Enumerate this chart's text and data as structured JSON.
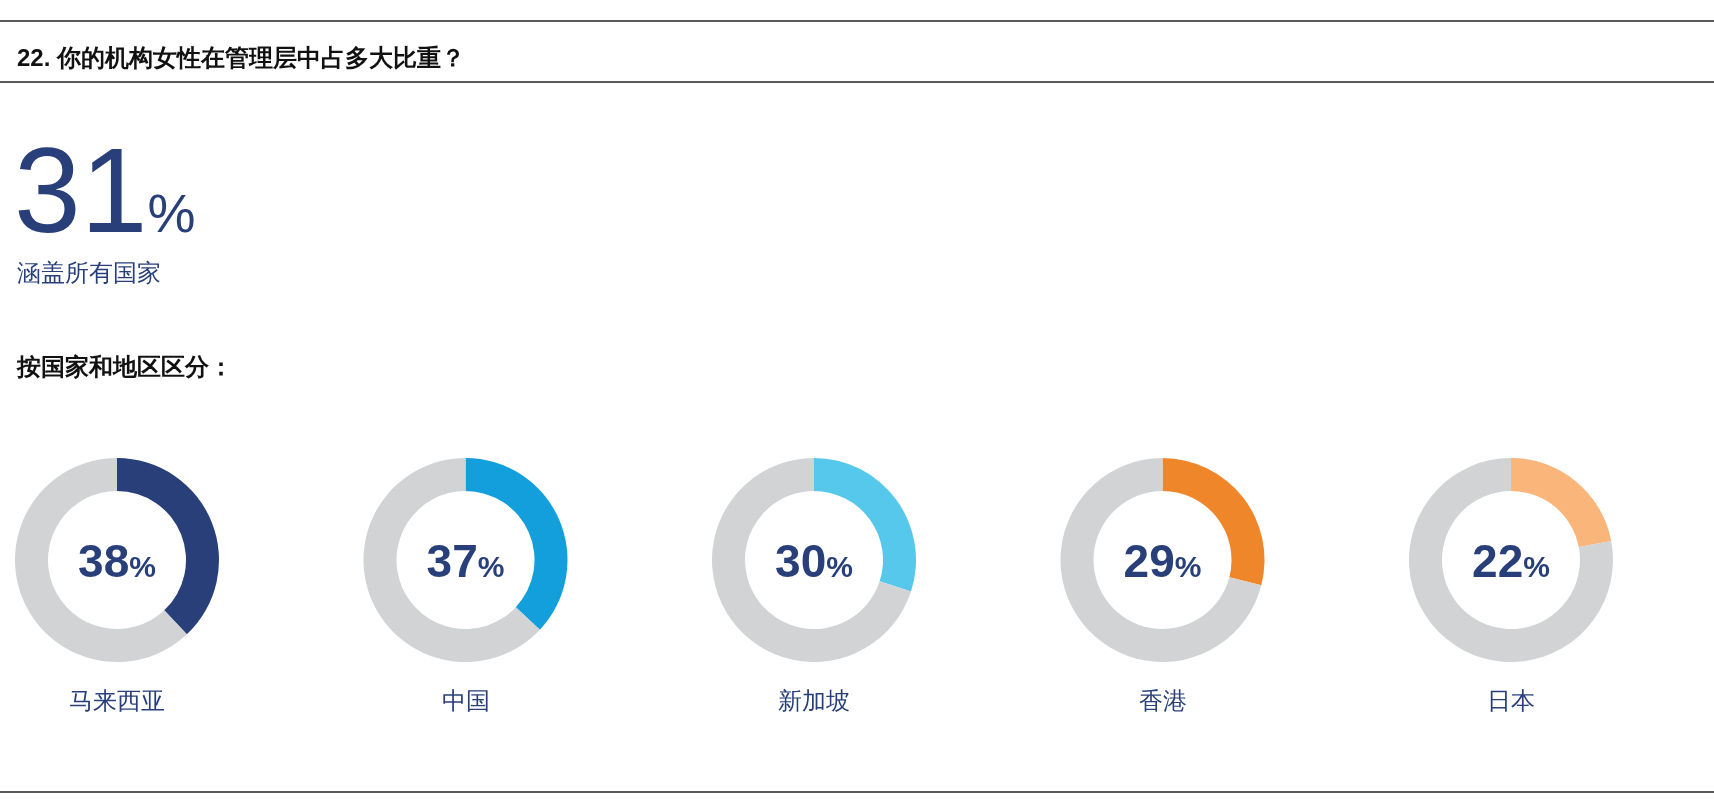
{
  "chart_data": [
    {
      "type": "other",
      "title": "22. 你的机构女性在管理层中占多大比重？",
      "annotations": [
        "31%",
        "涵盖所有国家",
        "按国家和地区区分："
      ]
    },
    {
      "type": "donut",
      "xlabel": "马来西亚",
      "categories": [
        null,
        null
      ],
      "values": [
        38,
        62
      ],
      "colors": [
        "#283f7a",
        "#d1d3d5"
      ],
      "annotations": [
        "38%"
      ]
    },
    {
      "type": "donut",
      "xlabel": "中国",
      "categories": [
        null,
        null
      ],
      "values": [
        37,
        63
      ],
      "colors": [
        "#129fdb",
        "#d1d3d5"
      ],
      "annotations": [
        "37%"
      ]
    },
    {
      "type": "donut",
      "xlabel": "新加坡",
      "categories": [
        null,
        null
      ],
      "values": [
        30,
        70
      ],
      "colors": [
        "#55c8ec",
        "#d1d3d5"
      ],
      "annotations": [
        "30%"
      ]
    },
    {
      "type": "donut",
      "xlabel": "香港",
      "categories": [
        null,
        null
      ],
      "values": [
        29,
        71
      ],
      "colors": [
        "#f0862a",
        "#d1d3d5"
      ],
      "annotations": [
        "29%"
      ]
    },
    {
      "type": "donut",
      "xlabel": "日本",
      "categories": [
        null,
        null
      ],
      "values": [
        22,
        78
      ],
      "colors": [
        "#f9b57a",
        "#d1d3d5"
      ],
      "annotations": [
        "22%"
      ]
    }
  ]
}
